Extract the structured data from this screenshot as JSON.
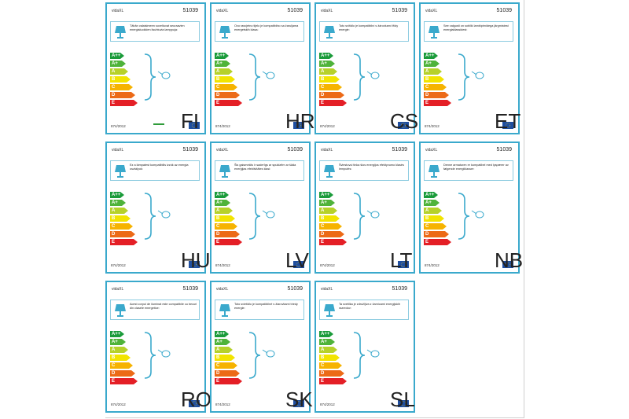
{
  "brand": "vidaXL",
  "product_code": "51039",
  "regulation": "874/2012",
  "energy_classes": [
    "A++",
    "A+",
    "A",
    "B",
    "C",
    "D",
    "E"
  ],
  "class_colors": [
    "#1a9b3a",
    "#4fb33a",
    "#b6d12a",
    "#f2e400",
    "#f6b300",
    "#ec6a17",
    "#e41f26"
  ],
  "labels": [
    {
      "lang": "FI",
      "text": "Tähän valaisimeen soveltuvat seuraavien energialuokkien lisuhtuvia lamppuja:",
      "col": 0,
      "row": 0
    },
    {
      "lang": "HR",
      "text": "Ovo rasvjetno tijelo je kompatibilno sa žaruljama energetskih klasa:",
      "col": 1,
      "row": 0
    },
    {
      "lang": "CS",
      "text": "Toto svítidlo je kompatibilní s žárovkami třídy energie:",
      "col": 2,
      "row": 0
    },
    {
      "lang": "ET",
      "text": "See valgusti on sobilik lambipirnidega järgmistest energiaklassidest:",
      "col": 3,
      "row": 0
    },
    {
      "lang": "HU",
      "text": "Ez a lámpatest kompatibilis izzók az energia osztályok:",
      "col": 0,
      "row": 1
    },
    {
      "lang": "LV",
      "text": "Šis gaismeklis ir saderīgs ar spuldzēm ar šāda enerģijas efektivitātes klasi:",
      "col": 1,
      "row": 1
    },
    {
      "lang": "LT",
      "text": "Šviestuvui tinka šios energijos efektyvumo klasės lemputės:",
      "col": 2,
      "row": 1
    },
    {
      "lang": "NB",
      "text": "Denne armaturen er kompatibel med lyspærer av følgende energiklasser:",
      "col": 3,
      "row": 1
    },
    {
      "lang": "RO",
      "text": "Acest corpul de iluminat este compatibile cu becuri din clasele energetice:",
      "col": 0,
      "row": 2
    },
    {
      "lang": "SK",
      "text": "Toto svietidlo je kompatibilné s žiarovkami triedy energie:",
      "col": 1,
      "row": 2
    },
    {
      "lang": "SL",
      "text": "Ta svetilka je združljiva z žarnicami energijskih razredov:",
      "col": 2,
      "row": 2
    }
  ]
}
